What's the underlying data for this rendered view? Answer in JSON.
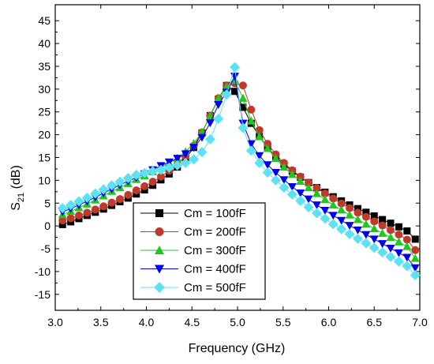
{
  "chart_data": {
    "type": "line",
    "title": "",
    "xlabel": "Frequency (GHz)",
    "ylabel": "S",
    "ylabel_sub": "21",
    "ylabel_unit": " (dB)",
    "xlim": [
      3.0,
      7.0
    ],
    "ylim": [
      -18.5,
      48.5
    ],
    "xticks": [
      3.0,
      3.5,
      4.0,
      4.5,
      5.0,
      5.5,
      6.0,
      6.5,
      7.0
    ],
    "xtick_labels": [
      "3.0",
      "3.5",
      "4.0",
      "4.5",
      "5.0",
      "5.5",
      "6.0",
      "6.5",
      "7.0"
    ],
    "yticks": [
      -15,
      -10,
      -5,
      0,
      5,
      10,
      15,
      20,
      25,
      30,
      35,
      40,
      45
    ],
    "ytick_labels": [
      "-15",
      "-10",
      "-5",
      "0",
      "5",
      "10",
      "15",
      "20",
      "25",
      "30",
      "35",
      "40",
      "45"
    ],
    "grid": false,
    "legend_placement": "bottom-center",
    "x": [
      3.08,
      3.17,
      3.26,
      3.35,
      3.44,
      3.53,
      3.62,
      3.71,
      3.8,
      3.89,
      3.98,
      4.07,
      4.16,
      4.25,
      4.34,
      4.43,
      4.52,
      4.61,
      4.7,
      4.79,
      4.88,
      4.97,
      5.06,
      5.15,
      5.24,
      5.33,
      5.42,
      5.51,
      5.6,
      5.69,
      5.78,
      5.87,
      5.96,
      6.05,
      6.14,
      6.23,
      6.32,
      6.41,
      6.5,
      6.59,
      6.68,
      6.77,
      6.86,
      6.95
    ],
    "series": [
      {
        "name": "Cm = 100fF",
        "color": "#000000",
        "marker": "square",
        "values": [
          0.3,
          0.9,
          1.6,
          2.3,
          3.0,
          3.7,
          4.5,
          5.3,
          6.1,
          7.0,
          7.9,
          8.9,
          10.1,
          11.4,
          12.9,
          14.8,
          17.2,
          20.4,
          24.2,
          27.8,
          30.8,
          29.5,
          26.0,
          22.5,
          19.6,
          17.2,
          15.2,
          13.5,
          12.0,
          10.7,
          9.5,
          8.4,
          7.4,
          6.4,
          5.5,
          4.6,
          3.8,
          3.0,
          2.2,
          1.4,
          0.6,
          -0.2,
          -1.1,
          -2.9
        ]
      },
      {
        "name": "Cm = 200fF",
        "color": "#c0392b",
        "marker": "circle",
        "values": [
          1.2,
          1.7,
          2.3,
          2.9,
          3.6,
          4.3,
          5.1,
          5.9,
          6.8,
          7.8,
          8.7,
          9.7,
          10.8,
          12.1,
          13.5,
          15.3,
          17.6,
          20.5,
          24.2,
          28.0,
          30.8,
          31.3,
          30.8,
          25.5,
          21.0,
          18.0,
          15.7,
          13.8,
          12.2,
          10.8,
          9.5,
          8.3,
          7.1,
          6.0,
          4.9,
          3.9,
          2.9,
          2.0,
          1.0,
          0.1,
          -0.9,
          -1.9,
          -3.0,
          -5.3
        ]
      },
      {
        "name": "Cm = 300fF",
        "color": "#1ec81e",
        "marker": "triangle-up",
        "values": [
          2.5,
          3.2,
          4.0,
          4.8,
          5.7,
          6.6,
          7.6,
          8.4,
          9.3,
          10.2,
          11.0,
          11.9,
          12.8,
          13.8,
          14.9,
          16.3,
          18.1,
          20.6,
          24.0,
          28.0,
          30.5,
          31.9,
          28.0,
          23.0,
          19.6,
          17.0,
          14.8,
          12.9,
          11.3,
          9.8,
          8.4,
          7.1,
          5.8,
          4.6,
          3.5,
          2.4,
          1.4,
          0.4,
          -0.6,
          -1.6,
          -2.5,
          -3.5,
          -4.5,
          -7.1
        ]
      },
      {
        "name": "Cm = 400fF",
        "color": "#0000ee",
        "marker": "triangle-down",
        "values": [
          3.1,
          3.8,
          4.6,
          5.4,
          6.3,
          7.2,
          8.1,
          9.0,
          9.8,
          10.6,
          11.4,
          12.3,
          13.2,
          14.0,
          14.8,
          15.8,
          17.2,
          19.4,
          22.6,
          26.6,
          29.3,
          32.8,
          22.5,
          18.0,
          15.4,
          13.4,
          11.7,
          10.1,
          8.6,
          7.2,
          5.9,
          4.6,
          3.4,
          2.3,
          1.2,
          0.1,
          -0.9,
          -1.9,
          -2.9,
          -3.9,
          -4.9,
          -5.9,
          -6.9,
          -9.2
        ]
      },
      {
        "name": "Cm = 500fF",
        "color": "#5ce1f5",
        "marker": "diamond",
        "values": [
          3.9,
          4.6,
          5.4,
          6.2,
          7.1,
          8.0,
          8.9,
          9.7,
          10.5,
          11.2,
          11.6,
          12.0,
          12.3,
          12.8,
          13.3,
          13.8,
          14.6,
          16.2,
          19.0,
          23.5,
          28.8,
          34.8,
          21.5,
          16.5,
          13.8,
          11.7,
          10.0,
          8.4,
          6.9,
          5.5,
          4.1,
          2.8,
          1.6,
          0.4,
          -0.7,
          -1.8,
          -2.8,
          -3.8,
          -4.8,
          -5.8,
          -6.8,
          -7.8,
          -8.8,
          -10.8
        ]
      }
    ]
  }
}
